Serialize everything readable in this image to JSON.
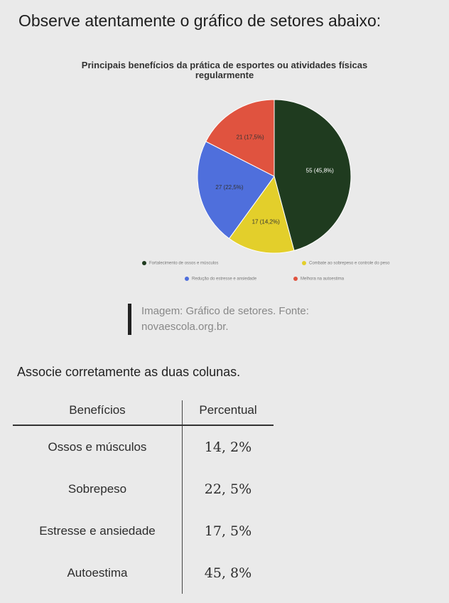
{
  "question": "Observe atentamente o gráfico de setores abaixo:",
  "chart_data": {
    "type": "pie",
    "title": "Principais benefícios da prática de esportes ou atividades físicas",
    "title_line2": "regularmente",
    "slices": [
      {
        "label": "55 (45,8%)",
        "value": 55,
        "color": "#1f3b1f"
      },
      {
        "label": "17 (14,2%)",
        "value": 17,
        "color": "#e3cf2b"
      },
      {
        "label": "27 (22,5%)",
        "value": 27,
        "color": "#4f6fdc"
      },
      {
        "label": "21 (17,5%)",
        "value": 21,
        "color": "#e0533f"
      }
    ],
    "legend": [
      {
        "text": "Fortalecimento de ossos e músculos",
        "color": "#1f3b1f"
      },
      {
        "text": "Combate ao sobrepeso e controle do peso",
        "color": "#e3cf2b"
      },
      {
        "text": "Redução do estresse e ansiedade",
        "color": "#4f6fdc"
      },
      {
        "text": "Melhora na autoestima",
        "color": "#e0533f"
      }
    ],
    "legend_placement": "bottom"
  },
  "caption_line1": "Imagem: Gráfico de setores. Fonte:",
  "caption_line2": "novaescola.org.br.",
  "instruction": "Associe corretamente as duas colunas.",
  "table": {
    "headers": [
      "Benefícios",
      "Percentual"
    ],
    "rows": [
      [
        "Ossos e músculos",
        "14, 2%"
      ],
      [
        "Sobrepeso",
        "22, 5%"
      ],
      [
        "Estresse e ansiedade",
        "17, 5%"
      ],
      [
        "Autoestima",
        "45, 8%"
      ]
    ]
  }
}
